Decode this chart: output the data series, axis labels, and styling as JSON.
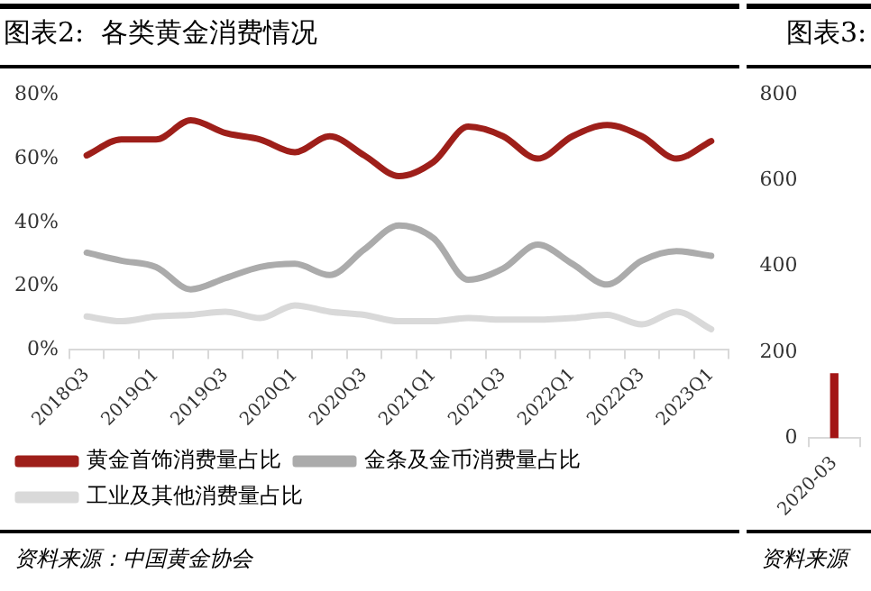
{
  "chart_data": [
    {
      "type": "line",
      "title": "图表2:  各类黄金消费情况",
      "categories": [
        "2018Q3",
        null,
        "2019Q1",
        null,
        "2019Q3",
        null,
        "2020Q1",
        null,
        "2020Q3",
        null,
        "2021Q1",
        null,
        "2021Q3",
        null,
        "2022Q1",
        null,
        "2022Q3",
        null,
        "2023Q1"
      ],
      "series": [
        {
          "name": "黄金首饰消费量占比",
          "color": "#9e1f1a",
          "values": [
            61,
            66,
            66,
            72,
            68,
            66,
            62,
            67,
            61,
            54.5,
            59,
            70,
            67,
            60,
            67,
            70.5,
            67,
            60,
            65.5
          ]
        },
        {
          "name": "金条及金币消费量占比",
          "color": "#ababab",
          "values": [
            30.5,
            28,
            26,
            19,
            22.5,
            26,
            27,
            23.5,
            31.5,
            39,
            35,
            22,
            25.5,
            33,
            27,
            20.5,
            28,
            31,
            29.5
          ]
        },
        {
          "name": "工业及其他消费量占比",
          "color": "#d9d9d9",
          "values": [
            10.5,
            9,
            10.5,
            11,
            12,
            10,
            14,
            12,
            11,
            9,
            9,
            10,
            9.5,
            9.5,
            10,
            11,
            8,
            12,
            6.5
          ]
        }
      ],
      "ylim": [
        0,
        80
      ],
      "yticks": [
        {
          "value": 0,
          "label": "0%"
        },
        {
          "value": 20,
          "label": "20%"
        },
        {
          "value": 40,
          "label": "40%"
        },
        {
          "value": 60,
          "label": "60%"
        },
        {
          "value": 80,
          "label": "80%"
        }
      ],
      "legend": "bottom",
      "annotations": [
        "资料来源：中国黄金协会"
      ]
    },
    {
      "type": "bar",
      "title": "图表3:",
      "categories": [
        "2020-03"
      ],
      "series": [
        {
          "color": "#a31515",
          "values": [
            150
          ]
        }
      ],
      "ylim": [
        0,
        800
      ],
      "yticks": [
        0,
        200,
        400,
        600,
        800
      ],
      "annotations": [
        "资料来源"
      ]
    }
  ]
}
